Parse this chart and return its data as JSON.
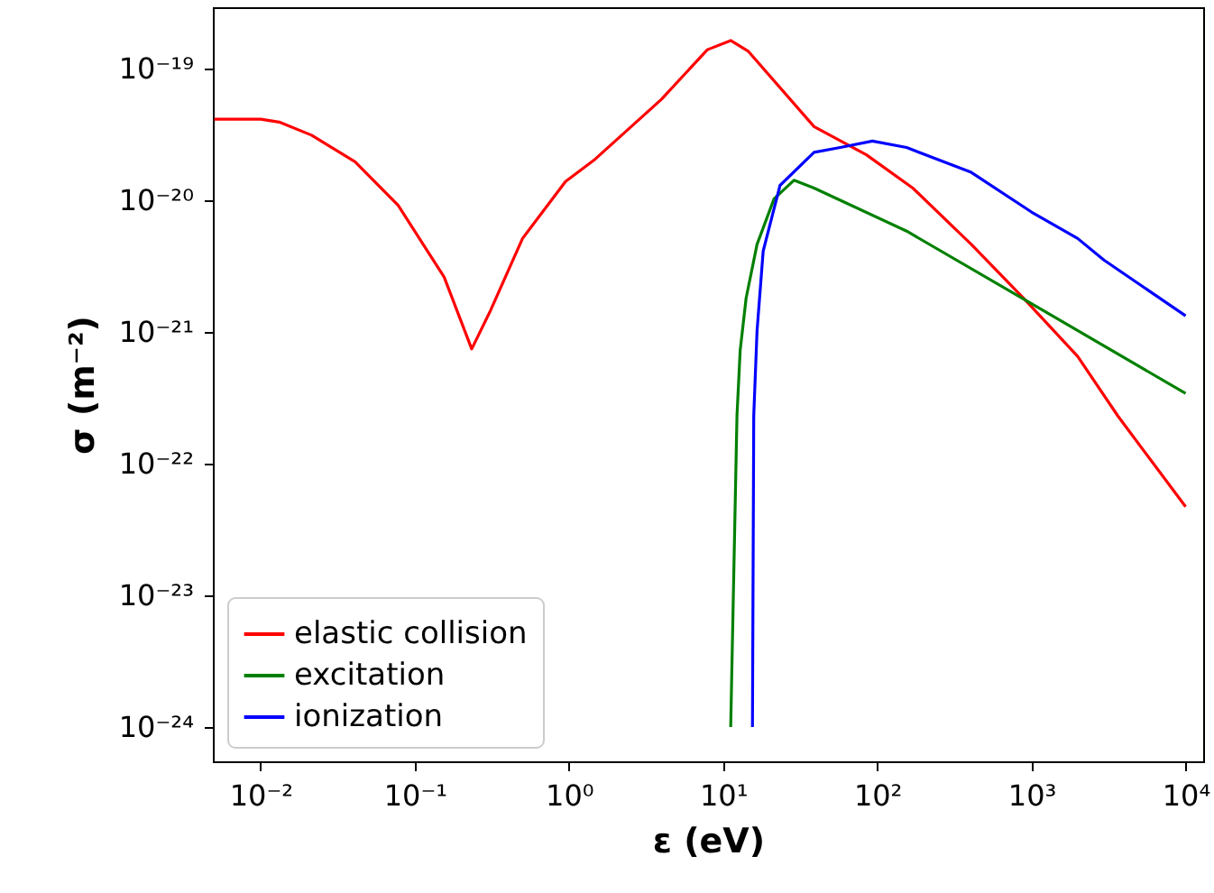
{
  "chart_data": {
    "type": "line",
    "xlabel": "ε (eV)",
    "ylabel": "σ (m⁻²)",
    "log": "xy",
    "grid": false,
    "legend": "bottom left",
    "marker": "none",
    "line_style": "solid",
    "xlim": [
      0.0049,
      13000
    ],
    "ylim": [
      5.5e-25,
      2.9e-19
    ],
    "xticks": [
      {
        "value": 0.01,
        "label": "10⁻²"
      },
      {
        "value": 0.1,
        "label": "10⁻¹"
      },
      {
        "value": 1,
        "label": "10⁰"
      },
      {
        "value": 10,
        "label": "10¹"
      },
      {
        "value": 100,
        "label": "10²"
      },
      {
        "value": 1000,
        "label": "10³"
      },
      {
        "value": 10000,
        "label": "10⁴"
      }
    ],
    "yticks": [
      {
        "value": 1e-24,
        "label": "10⁻²⁴"
      },
      {
        "value": 1e-23,
        "label": "10⁻²³"
      },
      {
        "value": 1e-22,
        "label": "10⁻²²"
      },
      {
        "value": 1e-21,
        "label": "10⁻²¹"
      },
      {
        "value": 1e-20,
        "label": "10⁻²⁰"
      },
      {
        "value": 1e-19,
        "label": "10⁻¹⁹"
      }
    ],
    "series": [
      {
        "name": "elastic collision",
        "color": "#ff0000",
        "x": [
          0.005,
          0.01,
          0.0132,
          0.0214,
          0.041,
          0.078,
          0.155,
          0.234,
          0.31,
          0.5,
          0.95,
          1.48,
          3.98,
          7.9,
          11.2,
          14.5,
          38.9,
          85,
          170,
          407,
          912,
          1995,
          3630,
          10000
        ],
        "values": [
          4.1e-20,
          4.1e-20,
          3.9e-20,
          3.1e-20,
          1.95e-20,
          9.1e-21,
          2.6e-21,
          7.4e-22,
          1.45e-21,
          5.1e-21,
          1.38e-20,
          2.04e-20,
          5.8e-20,
          1.38e-19,
          1.62e-19,
          1.35e-19,
          3.6e-20,
          2.2e-20,
          1.23e-20,
          4.6e-21,
          1.74e-21,
          6.5e-22,
          2.3e-22,
          4.7e-23
        ]
      },
      {
        "name": "excitation",
        "color": "#008000",
        "x": [
          11.2,
          12.3,
          12.9,
          14.1,
          16.6,
          21.4,
          28.8,
          38.9,
          155,
          912,
          10000
        ],
        "values": [
          1e-24,
          2.3e-22,
          7.2e-22,
          1.8e-21,
          4.6e-21,
          1.02e-20,
          1.41e-20,
          1.23e-20,
          5.8e-21,
          1.74e-21,
          3.4e-22
        ]
      },
      {
        "name": "ionization",
        "color": "#0000ff",
        "x": [
          15.5,
          15.8,
          16.6,
          18.2,
          23.4,
          38.9,
          57.5,
          93,
          155,
          407,
          1000,
          1995,
          2950,
          10000
        ],
        "values": [
          1e-24,
          2.3e-22,
          1.02e-21,
          4.1e-21,
          1.29e-20,
          2.3e-20,
          2.5e-20,
          2.8e-20,
          2.5e-20,
          1.62e-20,
          8.1e-21,
          5.1e-21,
          3.5e-21,
          1.32e-21
        ]
      }
    ]
  }
}
